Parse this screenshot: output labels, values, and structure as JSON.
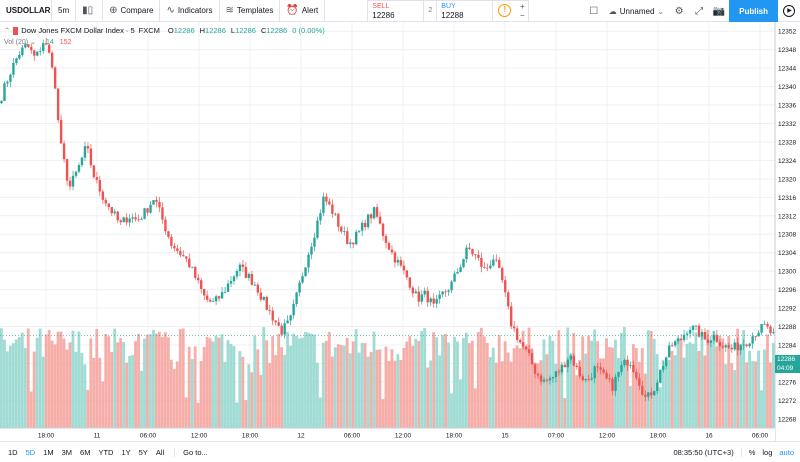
{
  "toolbar": {
    "symbol": "USDOLLAR",
    "interval": "5m",
    "compare_label": "Compare",
    "indicators_label": "Indicators",
    "templates_label": "Templates",
    "alert_label": "Alert",
    "trade": {
      "sell_label": "SELL",
      "sell_price": "12286",
      "spread": "2",
      "buy_label": "BUY",
      "buy_price": "12288",
      "qty_icon": "!",
      "plus": "+",
      "minus": "−"
    },
    "layout_name": "Unnamed",
    "publish_label": "Publish"
  },
  "legend": {
    "title": "Dow Jones FXCM Dollar Index · 5",
    "exchange": "FXCM",
    "open_label": "O",
    "open": "12286",
    "high_label": "H",
    "high": "12286",
    "low_label": "L",
    "low": "12286",
    "close_label": "C",
    "close": "12286",
    "change": "0 (0.00%)",
    "volume_label": "Vol (20)",
    "volume_1": "14",
    "volume_2": "152"
  },
  "price_axis": {
    "labels": [
      "12352",
      "12348",
      "12344",
      "12340",
      "12336",
      "12332",
      "12328",
      "12324",
      "12320",
      "12316",
      "12312",
      "12308",
      "12304",
      "12300",
      "12296",
      "12292",
      "12288",
      "12284",
      "12280",
      "12276",
      "12272",
      "12268"
    ],
    "last_price": "12286",
    "countdown": "04:09"
  },
  "time_axis": {
    "labels": [
      "18:00",
      "11",
      "06:00",
      "12:00",
      "18:00",
      "12",
      "06:00",
      "12:00",
      "18:00",
      "15",
      "07:00",
      "12:00",
      "18:00",
      "16",
      "06:00"
    ]
  },
  "ranges": [
    "1D",
    "5D",
    "1M",
    "3M",
    "6M",
    "YTD",
    "1Y",
    "5Y",
    "All"
  ],
  "active_range": "5D",
  "goto_label": "Go to...",
  "status": {
    "time": "08:35:50 (UTC+3)",
    "percent": "%",
    "log": "log",
    "auto": "auto"
  },
  "colors": {
    "up": "#26a69a",
    "down": "#ef5350",
    "vol_up": "#8fd6cd",
    "vol_down": "#f4a09a",
    "accent": "#2196f3"
  },
  "chart_data": {
    "type": "candlestick",
    "symbol": "USDOLLAR",
    "interval": "5m",
    "y_range": [
      12266,
      12354
    ],
    "x_ticks": [
      "18:00",
      "11",
      "06:00",
      "12:00",
      "18:00",
      "12",
      "06:00",
      "12:00",
      "18:00",
      "15",
      "07:00",
      "12:00",
      "18:00",
      "16",
      "06:00"
    ],
    "close_path": [
      12338,
      12343,
      12347,
      12349,
      12346,
      12350,
      12345,
      12327,
      12318,
      12322,
      12327,
      12320,
      12316,
      12313,
      12310,
      12312,
      12311,
      12313,
      12316,
      12311,
      12306,
      12304,
      12302,
      12298,
      12294,
      12293,
      12295,
      12298,
      12301,
      12299,
      12297,
      12293,
      12290,
      12287,
      12289,
      12296,
      12303,
      12309,
      12316,
      12313,
      12309,
      12306,
      12308,
      12311,
      12313,
      12308,
      12304,
      12301,
      12298,
      12294,
      12295,
      12292,
      12295,
      12297,
      12301,
      12305,
      12303,
      12300,
      12303,
      12298,
      12289,
      12285,
      12282,
      12278,
      12276,
      12277,
      12279,
      12282,
      12278,
      12276,
      12279,
      12277,
      12275,
      12279,
      12281,
      12277,
      12272,
      12275,
      12280,
      12284,
      12285,
      12288,
      12287,
      12285,
      12286,
      12284,
      12283,
      12284,
      12285,
      12287,
      12288,
      12286
    ],
    "volume_range": [
      0,
      180
    ]
  }
}
